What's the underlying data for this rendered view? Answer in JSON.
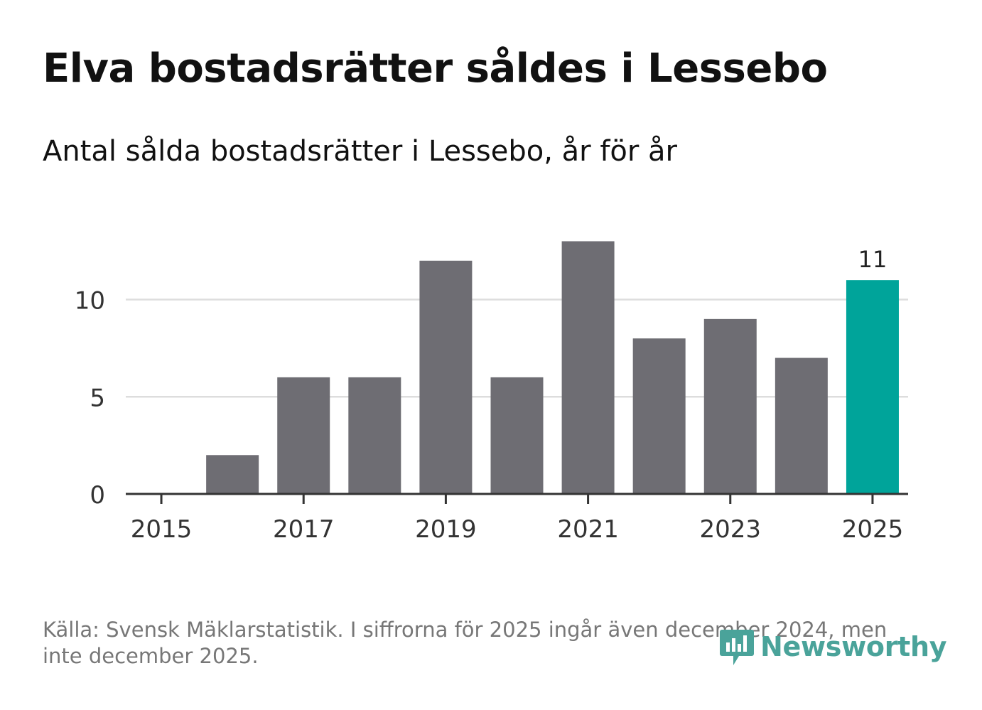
{
  "title": "Elva bostadsrätter såldes i Lessebo",
  "subtitle": "Antal sålda bostadsrätter i Lessebo, år för år",
  "source": "Källa: Svensk Mäklarstatistik. I siffrorna för 2025 ingår även december 2024, men inte december 2025.",
  "logo": {
    "text": "Newsworthy",
    "icon": "newsworthy-bar-chart-icon",
    "color": "#4aa39a"
  },
  "colors": {
    "bar": "#6e6d73",
    "highlight": "#00a49a",
    "grid": "#dddddd",
    "axis": "#333333",
    "text": "#333333"
  },
  "chart_data": {
    "type": "bar",
    "title": "Elva bostadsrätter såldes i Lessebo",
    "subtitle": "Antal sålda bostadsrätter i Lessebo, år för år",
    "xlabel": "",
    "ylabel": "",
    "categories": [
      "2015",
      "2016",
      "2017",
      "2018",
      "2019",
      "2020",
      "2021",
      "2022",
      "2023",
      "2024",
      "2025"
    ],
    "values": [
      0,
      2,
      6,
      6,
      12,
      6,
      13,
      8,
      9,
      7,
      11
    ],
    "highlight_index": 10,
    "highlight_label": "11",
    "x_tick_labels": [
      "2015",
      "2017",
      "2019",
      "2021",
      "2023",
      "2025"
    ],
    "y_ticks": [
      0,
      5,
      10
    ],
    "ylim": [
      0,
      13
    ],
    "grid": true
  }
}
